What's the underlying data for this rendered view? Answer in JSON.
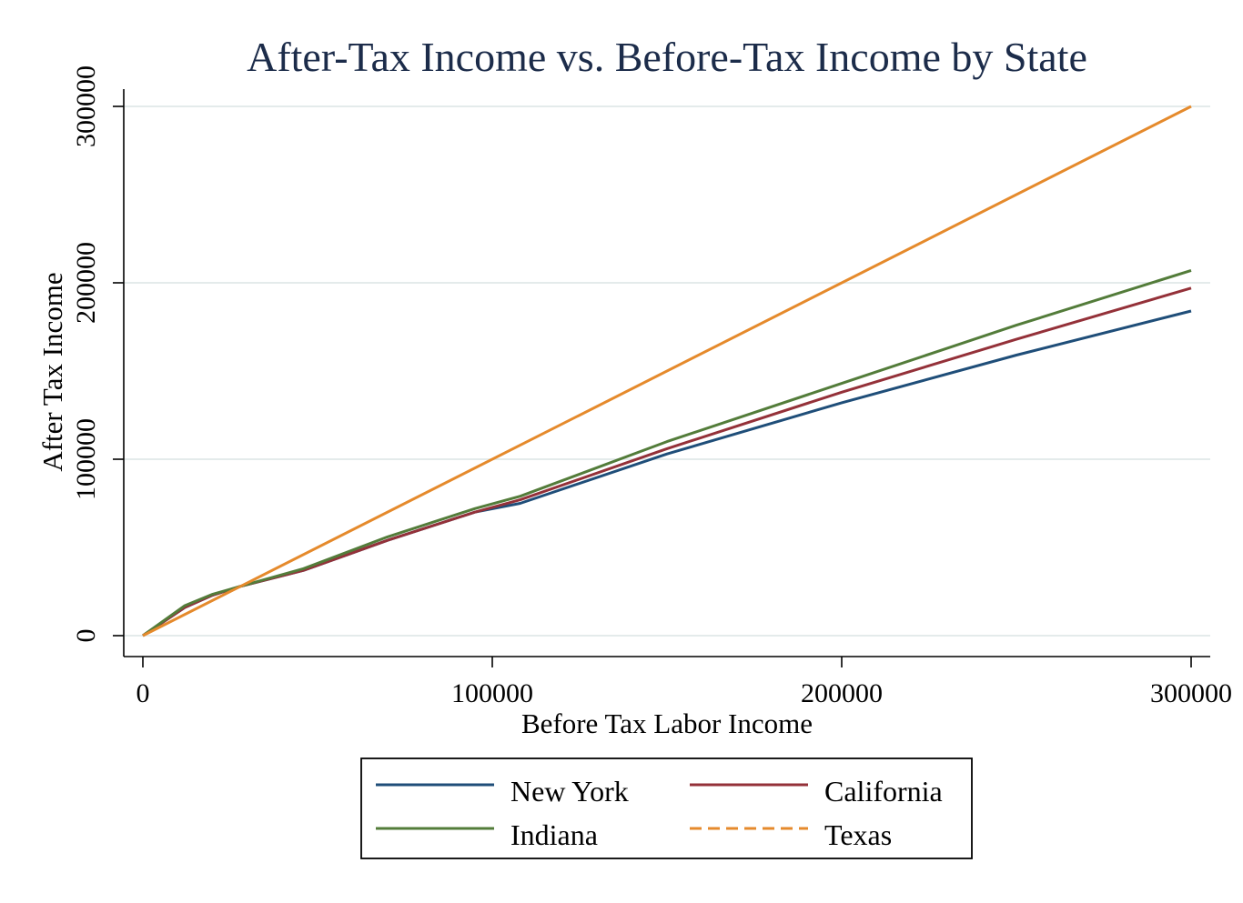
{
  "chart_data": {
    "type": "line",
    "title": "After-Tax Income vs. Before-Tax Income by State",
    "xlabel": "Before Tax Labor Income",
    "ylabel": "After Tax Income",
    "xlim": [
      0,
      300000
    ],
    "ylim": [
      0,
      300000
    ],
    "xticks": [
      {
        "value": 0,
        "label": "0"
      },
      {
        "value": 100000,
        "label": "100000"
      },
      {
        "value": 200000,
        "label": "200000"
      },
      {
        "value": 300000,
        "label": "300000"
      }
    ],
    "yticks": [
      {
        "value": 0,
        "label": "0"
      },
      {
        "value": 100000,
        "label": "100000"
      },
      {
        "value": 200000,
        "label": "200000"
      },
      {
        "value": 300000,
        "label": "300000"
      }
    ],
    "grid": "horizontal",
    "legend_position": "bottom",
    "series": [
      {
        "name": "New York",
        "color": "#1f4e79",
        "dash": "solid",
        "points": [
          [
            0,
            0
          ],
          [
            12000,
            16000
          ],
          [
            20000,
            23000
          ],
          [
            28000,
            28000
          ],
          [
            46000,
            37000
          ],
          [
            70000,
            54000
          ],
          [
            95000,
            70000
          ],
          [
            108000,
            75000
          ],
          [
            150000,
            103000
          ],
          [
            200000,
            132000
          ],
          [
            250000,
            159000
          ],
          [
            300000,
            184000
          ]
        ]
      },
      {
        "name": "California",
        "color": "#943139",
        "dash": "solid",
        "points": [
          [
            0,
            0
          ],
          [
            12000,
            16000
          ],
          [
            20000,
            23000
          ],
          [
            28000,
            28000
          ],
          [
            46000,
            37000
          ],
          [
            70000,
            54000
          ],
          [
            95000,
            70000
          ],
          [
            108000,
            77000
          ],
          [
            150000,
            106000
          ],
          [
            200000,
            138000
          ],
          [
            250000,
            168000
          ],
          [
            300000,
            197000
          ]
        ]
      },
      {
        "name": "Indiana",
        "color": "#537c3a",
        "dash": "solid",
        "points": [
          [
            0,
            0
          ],
          [
            12000,
            17000
          ],
          [
            20000,
            23500
          ],
          [
            28000,
            28000
          ],
          [
            46000,
            38000
          ],
          [
            70000,
            56000
          ],
          [
            95000,
            72000
          ],
          [
            108000,
            79000
          ],
          [
            150000,
            110000
          ],
          [
            200000,
            143000
          ],
          [
            250000,
            176000
          ],
          [
            300000,
            207000
          ]
        ]
      },
      {
        "name": "Texas",
        "color": "#e58a2c",
        "dash": "dashed",
        "points": [
          [
            0,
            0
          ],
          [
            300000,
            300000
          ]
        ]
      }
    ]
  }
}
